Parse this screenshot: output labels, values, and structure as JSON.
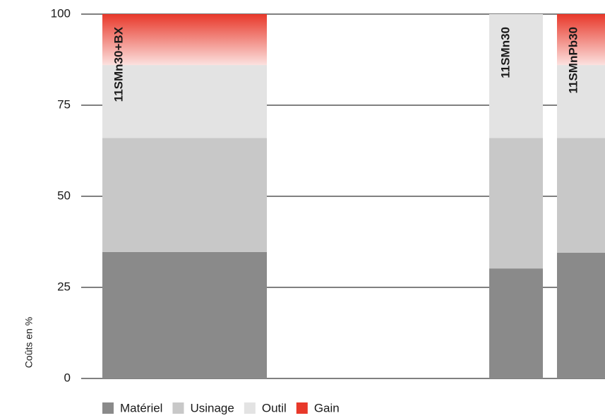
{
  "chart_data": {
    "type": "stacked-bar",
    "ylabel": "Coûts en %",
    "categories": [
      "11SMn30+BX",
      "11SMn30",
      "11SMnPb30"
    ],
    "series": [
      {
        "name": "Matériel",
        "color": "#8a8a8a",
        "values": [
          34.7,
          30.2,
          34.5
        ]
      },
      {
        "name": "Usinage",
        "color": "#c8c8c8",
        "values": [
          31.3,
          35.8,
          31.5
        ]
      },
      {
        "name": "Outil",
        "color": "#e3e3e3",
        "values": [
          20,
          34,
          20
        ]
      },
      {
        "name": "Gain",
        "color": "#e8382a",
        "values": [
          14,
          0,
          14
        ]
      }
    ],
    "ylim": [
      0,
      100
    ],
    "yticks": [
      0,
      25,
      50,
      75,
      100
    ],
    "grid": true
  }
}
